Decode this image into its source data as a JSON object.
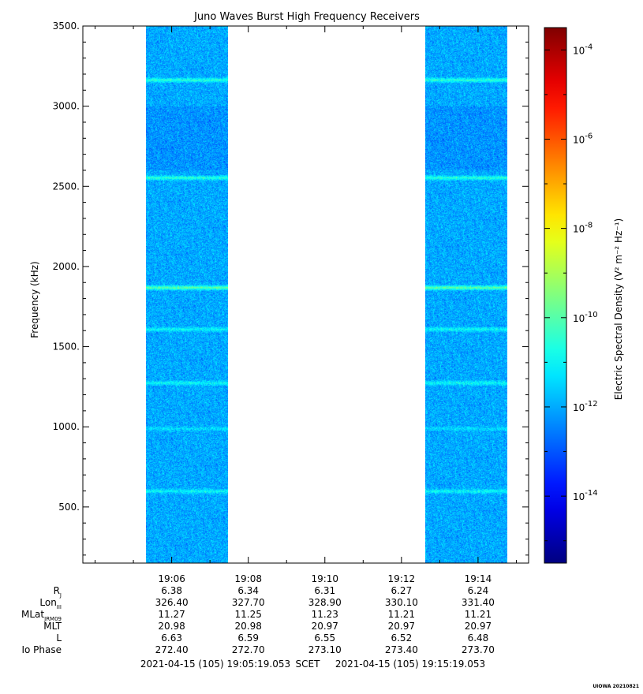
{
  "chart_data": {
    "type": "heatmap",
    "title": "Juno Waves Burst High Frequency Receivers",
    "ylabel": "Frequency (kHz)",
    "ylim": [
      150,
      3500
    ],
    "y_ticks": [
      {
        "value": 500,
        "label": "500."
      },
      {
        "value": 1000,
        "label": "1000."
      },
      {
        "value": 1500,
        "label": "1500."
      },
      {
        "value": 2000,
        "label": "2000."
      },
      {
        "value": 2500,
        "label": "2500."
      },
      {
        "value": 3000,
        "label": "3000."
      },
      {
        "value": 3500,
        "label": "3500."
      }
    ],
    "x_range_minutes": [
      -1.32,
      10.32
    ],
    "x_origin": "2021-04-15 19:05",
    "x_ticks": [
      {
        "value": 1,
        "label": "19:06"
      },
      {
        "value": 3,
        "label": "19:08"
      },
      {
        "value": 5,
        "label": "19:10"
      },
      {
        "value": 7,
        "label": "19:12"
      },
      {
        "value": 9,
        "label": "19:14"
      }
    ],
    "data_intervals_minutes": [
      [
        0.32,
        2.47
      ],
      [
        7.62,
        9.76
      ]
    ],
    "emission_lines_khz": [
      {
        "value": 3165,
        "strength": 0.7
      },
      {
        "value": 2555,
        "strength": 0.7
      },
      {
        "value": 1870,
        "strength": 1.0
      },
      {
        "value": 1610,
        "strength": 0.5
      },
      {
        "value": 1275,
        "strength": 0.5
      },
      {
        "value": 990,
        "strength": 0.3
      },
      {
        "value": 600,
        "strength": 0.5
      }
    ],
    "colorbar": {
      "label": "Electric Spectral Density (V² m⁻² Hz⁻¹)",
      "log_min": -15.5,
      "log_max": -3.5,
      "ticks": [
        {
          "value": -14,
          "label": "10-14"
        },
        {
          "value": -12,
          "label": "10-12"
        },
        {
          "value": -10,
          "label": "10-10"
        },
        {
          "value": -8,
          "label": "10-8"
        },
        {
          "value": -6,
          "label": "10-6"
        },
        {
          "value": -4,
          "label": "10-4"
        }
      ]
    },
    "ephemeris": {
      "rows": [
        {
          "label": "R",
          "sub": "J",
          "values": [
            "6.38",
            "6.34",
            "6.31",
            "6.27",
            "6.24"
          ]
        },
        {
          "label": "Lon",
          "sub": "III",
          "values": [
            "326.40",
            "327.70",
            "328.90",
            "330.10",
            "331.40"
          ]
        },
        {
          "label": "MLat",
          "sub": "JRM09",
          "values": [
            "11.27",
            "11.25",
            "11.23",
            "11.21",
            "11.21"
          ]
        },
        {
          "label": "MLT",
          "sub": "",
          "values": [
            "20.98",
            "20.98",
            "20.97",
            "20.97",
            "20.97"
          ]
        },
        {
          "label": "L",
          "sub": "",
          "values": [
            "6.63",
            "6.59",
            "6.55",
            "6.52",
            "6.48"
          ]
        },
        {
          "label": "Io Phase",
          "sub": "",
          "values": [
            "272.40",
            "272.70",
            "273.10",
            "273.40",
            "273.70"
          ]
        }
      ]
    },
    "footer": {
      "start": "2021-04-15 (105) 19:05:19.053",
      "scet": "SCET",
      "end": "2021-04-15 (105) 19:15:19.053"
    },
    "credit": "UIOWA 20210821"
  }
}
